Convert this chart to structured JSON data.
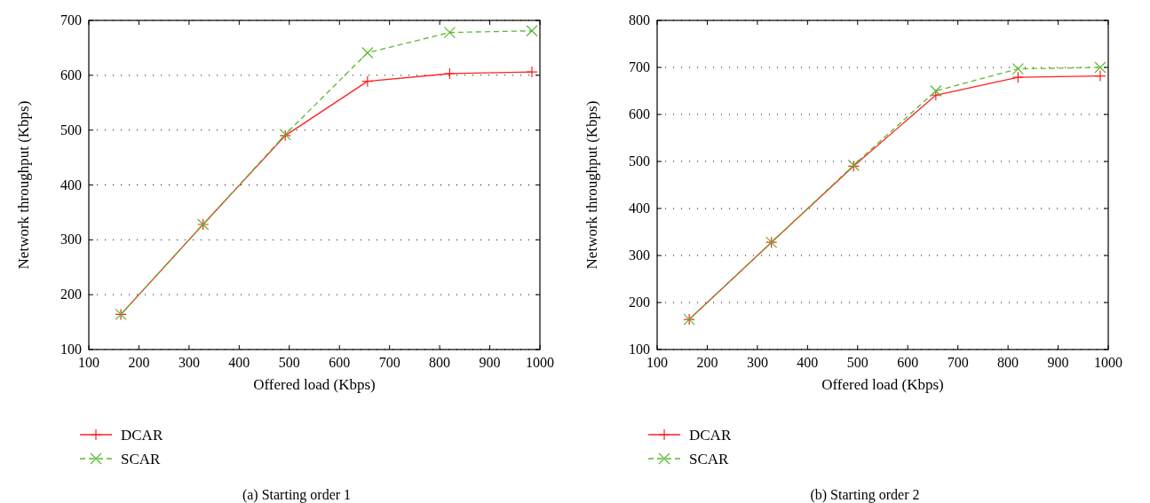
{
  "chart_data": [
    {
      "type": "line",
      "title": "(a)  Starting order 1",
      "xlabel": "Offered load (Kbps)",
      "ylabel": "Network throughput (Kbps)",
      "x": [
        164,
        328,
        492,
        656,
        820,
        984
      ],
      "xlim": [
        100,
        1000
      ],
      "xticks": [
        100,
        200,
        300,
        400,
        500,
        600,
        700,
        800,
        900,
        1000
      ],
      "ylim": [
        100,
        700
      ],
      "yticks": [
        100,
        200,
        300,
        400,
        500,
        600,
        700
      ],
      "grid": "y",
      "legend": "bottom left",
      "series": [
        {
          "name": "DCAR",
          "color": "#ff2020",
          "values": [
            164,
            328,
            490,
            589,
            603,
            606
          ],
          "marker": "cross",
          "line_style": "solid"
        },
        {
          "name": "SCAR",
          "color": "#5cb832",
          "values": [
            164,
            328,
            492,
            641,
            678,
            681
          ],
          "marker": "x",
          "line_style": "dashed"
        }
      ]
    },
    {
      "type": "line",
      "title": "(b)  Starting order 2",
      "xlabel": "Offered load (Kbps)",
      "ylabel": "Network throughput (Kbps)",
      "x": [
        164,
        328,
        492,
        656,
        820,
        984
      ],
      "xlim": [
        100,
        1000
      ],
      "xticks": [
        100,
        200,
        300,
        400,
        500,
        600,
        700,
        800,
        900,
        1000
      ],
      "ylim": [
        100,
        800
      ],
      "yticks": [
        100,
        200,
        300,
        400,
        500,
        600,
        700,
        800
      ],
      "grid": "y",
      "legend": "bottom left",
      "series": [
        {
          "name": "DCAR",
          "color": "#ff2020",
          "values": [
            164,
            328,
            490,
            641,
            679,
            682
          ],
          "marker": "cross",
          "line_style": "solid"
        },
        {
          "name": "SCAR",
          "color": "#5cb832",
          "values": [
            164,
            328,
            492,
            650,
            697,
            700
          ],
          "marker": "x",
          "line_style": "dashed"
        }
      ]
    }
  ]
}
